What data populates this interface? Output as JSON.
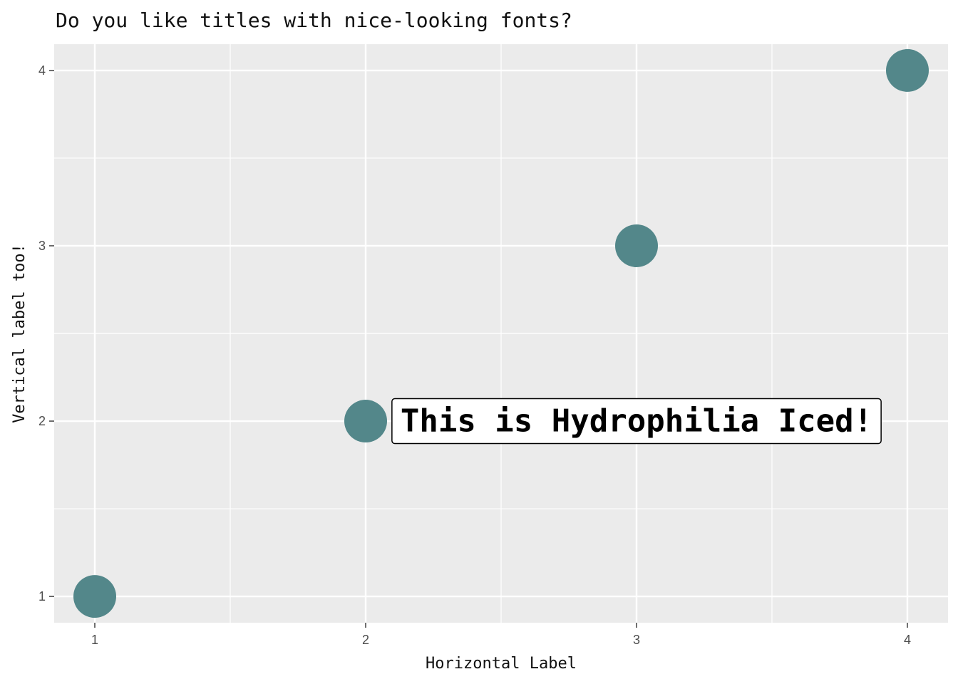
{
  "chart_data": {
    "type": "scatter",
    "title": "Do you like titles with nice-looking fonts?",
    "xlabel": "Horizontal Label",
    "ylabel": "Vertical label too!",
    "x": [
      1,
      2,
      3,
      4
    ],
    "y": [
      1,
      2,
      3,
      4
    ],
    "xlim": [
      0.85,
      4.15
    ],
    "ylim": [
      0.85,
      4.15
    ],
    "xticks": [
      1,
      2,
      3,
      4
    ],
    "yticks": [
      1,
      2,
      3,
      4
    ],
    "xtick_labels": [
      "1",
      "2",
      "3",
      "4"
    ],
    "ytick_labels": [
      "1",
      "2",
      "3",
      "4"
    ],
    "grid": true,
    "point_color": "#53878a",
    "panel_color": "#ebebeb",
    "annotation": {
      "text": "This is Hydrophilia Iced!",
      "x": 3,
      "y": 2
    }
  }
}
